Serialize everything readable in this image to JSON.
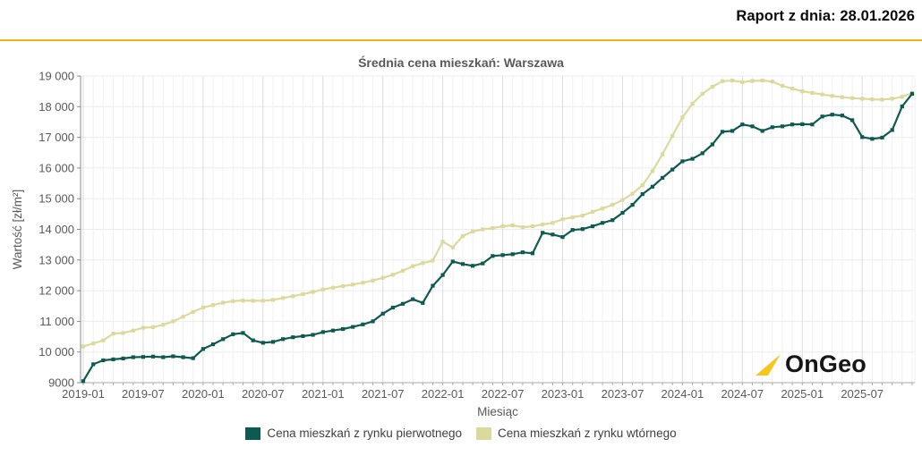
{
  "header": {
    "report_label": "Raport z dnia: 28.01.2026"
  },
  "logo": {
    "text": "OnGeo"
  },
  "colors": {
    "accent_gold": "#EFB30F",
    "logo_triangle": "#F6C51E",
    "primary_series": "#0E5A50",
    "secondary_series": "#DCD99D",
    "axis_text": "#595959",
    "grid_minor": "#F1F1F1",
    "grid_major": "#DCDCDC",
    "grid_horizontal": "#EBEBEB"
  },
  "chart_data": {
    "type": "line",
    "title": "Średnia cena mieszkań: Warszawa",
    "xlabel": "Miesiąc",
    "ylabel": "Wartość [zł/m²]",
    "ylim": [
      9000,
      19000
    ],
    "y_tick_step": 1000,
    "grid": true,
    "legend_position": "bottom",
    "y_tick_labels": [
      "9000",
      "10 000",
      "11 000",
      "12 000",
      "13 000",
      "14 000",
      "15 000",
      "16 000",
      "17 000",
      "18 000",
      "19 000"
    ],
    "x_tick_labels": [
      "2019-01",
      "2019-07",
      "2020-01",
      "2020-07",
      "2021-01",
      "2021-07",
      "2022-01",
      "2022-07",
      "2023-01",
      "2023-07",
      "2024-01",
      "2024-07",
      "2025-01",
      "2025-07"
    ],
    "x": [
      "2019-01",
      "2019-02",
      "2019-03",
      "2019-04",
      "2019-05",
      "2019-06",
      "2019-07",
      "2019-08",
      "2019-09",
      "2019-10",
      "2019-11",
      "2019-12",
      "2020-01",
      "2020-02",
      "2020-03",
      "2020-04",
      "2020-05",
      "2020-06",
      "2020-07",
      "2020-08",
      "2020-09",
      "2020-10",
      "2020-11",
      "2020-12",
      "2021-01",
      "2021-02",
      "2021-03",
      "2021-04",
      "2021-05",
      "2021-06",
      "2021-07",
      "2021-08",
      "2021-09",
      "2021-10",
      "2021-11",
      "2021-12",
      "2022-01",
      "2022-02",
      "2022-03",
      "2022-04",
      "2022-05",
      "2022-06",
      "2022-07",
      "2022-08",
      "2022-09",
      "2022-10",
      "2022-11",
      "2022-12",
      "2023-01",
      "2023-02",
      "2023-03",
      "2023-04",
      "2023-05",
      "2023-06",
      "2023-07",
      "2023-08",
      "2023-09",
      "2023-10",
      "2023-11",
      "2023-12",
      "2024-01",
      "2024-02",
      "2024-03",
      "2024-04",
      "2024-05",
      "2024-06",
      "2024-07",
      "2024-08",
      "2024-09",
      "2024-10",
      "2024-11",
      "2024-12",
      "2025-01",
      "2025-02",
      "2025-03",
      "2025-04",
      "2025-05",
      "2025-06",
      "2025-07",
      "2025-08",
      "2025-09",
      "2025-10",
      "2025-11",
      "2025-12"
    ],
    "series": [
      {
        "name": "Cena mieszkań z rynku pierwotnego",
        "color": "#0E5A50",
        "values": [
          9050,
          9600,
          9730,
          9760,
          9790,
          9830,
          9840,
          9850,
          9830,
          9860,
          9830,
          9800,
          10100,
          10250,
          10420,
          10580,
          10620,
          10380,
          10300,
          10330,
          10420,
          10480,
          10520,
          10560,
          10650,
          10700,
          10750,
          10820,
          10900,
          11000,
          11250,
          11450,
          11570,
          11720,
          11600,
          12160,
          12510,
          12950,
          12870,
          12810,
          12890,
          13130,
          13160,
          13190,
          13250,
          13220,
          13890,
          13830,
          13750,
          13980,
          14010,
          14100,
          14210,
          14300,
          14540,
          14800,
          15150,
          15390,
          15680,
          15950,
          16220,
          16300,
          16480,
          16770,
          17180,
          17210,
          17420,
          17360,
          17210,
          17330,
          17360,
          17420,
          17430,
          17420,
          17680,
          17740,
          17710,
          17560,
          17010,
          16950,
          16990,
          17240,
          18010,
          18420
        ]
      },
      {
        "name": "Cena mieszkań z rynku wtórnego",
        "color": "#DCD99D",
        "values": [
          10180,
          10280,
          10380,
          10600,
          10620,
          10700,
          10790,
          10810,
          10890,
          11000,
          11150,
          11310,
          11450,
          11530,
          11610,
          11660,
          11680,
          11670,
          11670,
          11700,
          11760,
          11820,
          11890,
          11960,
          12040,
          12100,
          12150,
          12200,
          12260,
          12330,
          12420,
          12520,
          12650,
          12800,
          12900,
          12980,
          13600,
          13410,
          13780,
          13930,
          14000,
          14040,
          14100,
          14130,
          14070,
          14100,
          14160,
          14210,
          14330,
          14390,
          14450,
          14570,
          14680,
          14800,
          14960,
          15160,
          15440,
          15900,
          16450,
          17050,
          17650,
          18100,
          18420,
          18650,
          18830,
          18850,
          18800,
          18840,
          18850,
          18820,
          18680,
          18590,
          18500,
          18450,
          18400,
          18350,
          18310,
          18280,
          18260,
          18240,
          18230,
          18260,
          18320,
          18450
        ]
      }
    ]
  }
}
